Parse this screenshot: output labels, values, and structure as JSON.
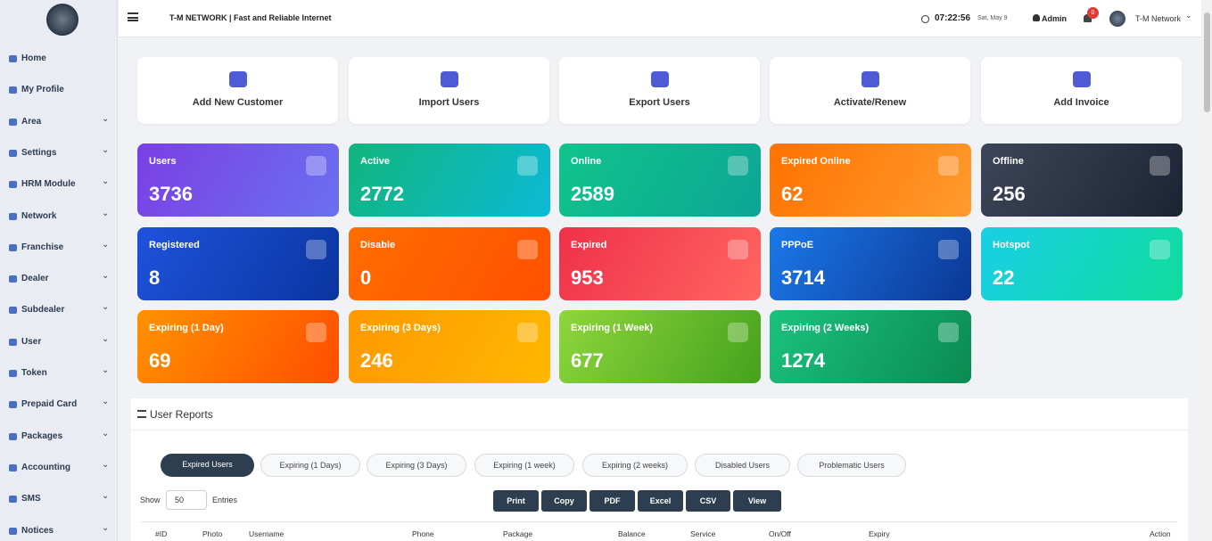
{
  "header": {
    "brand": "T-M NETWORK | Fast and Reliable Internet",
    "time": "07:22:56",
    "date": "Sat, May 9",
    "user": "Admin",
    "notifications": "0",
    "account": "T-M Network"
  },
  "sidebar": [
    "Home",
    "My Profile",
    "Area",
    "Settings",
    "HRM Module",
    "Network",
    "Franchise",
    "Dealer",
    "Subdealer",
    "User",
    "Token",
    "Prepaid Card",
    "Packages",
    "Accounting",
    "SMS",
    "Notices"
  ],
  "actions": [
    "Add New Customer",
    "Import Users",
    "Export Users",
    "Activate/Renew",
    "Add Invoice"
  ],
  "stats": [
    {
      "label": "Users",
      "value": 3736
    },
    {
      "label": "Active",
      "value": 2772
    },
    {
      "label": "Online",
      "value": 2589
    },
    {
      "label": "Expired Online",
      "value": 62
    },
    {
      "label": "Offline",
      "value": 256
    },
    {
      "label": "Registered",
      "value": 8
    },
    {
      "label": "Disable",
      "value": 0
    },
    {
      "label": "Expired",
      "value": 953
    },
    {
      "label": "PPPoE",
      "value": 3714
    },
    {
      "label": "Hotspot",
      "value": 22
    },
    {
      "label": "Expiring (1 Day)",
      "value": 69
    },
    {
      "label": "Expiring (3 Days)",
      "value": 246
    },
    {
      "label": "Expiring (1 Week)",
      "value": 677
    },
    {
      "label": "Expiring (2 Weeks)",
      "value": 1274
    }
  ],
  "reports": {
    "title": "User Reports",
    "tabs": [
      "Expired Users",
      "Expiring (1 Days)",
      "Expiring (3 Days)",
      "Expiring (1 week)",
      "Expiring (2 weeks)",
      "Disabled Users",
      "Problematic Users"
    ],
    "show": "Show",
    "entries_value": "50",
    "entries": "Entries",
    "buttons": [
      "Print",
      "Copy",
      "PDF",
      "Excel",
      "CSV",
      "View"
    ],
    "columns": [
      "#ID",
      "Photo",
      "Username",
      "Phone",
      "Package",
      "Balance",
      "Service",
      "On/Off",
      "Expiry",
      "Action"
    ]
  }
}
